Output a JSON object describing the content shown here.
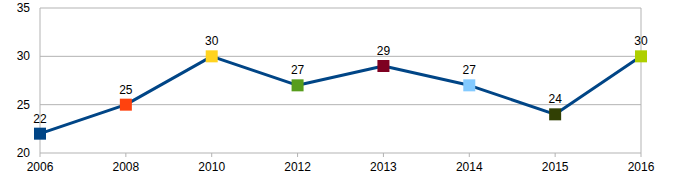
{
  "chart_data": {
    "type": "line",
    "categories": [
      "2006",
      "2008",
      "2010",
      "2012",
      "2013",
      "2014",
      "2015",
      "2016"
    ],
    "values": [
      22,
      25,
      30,
      27,
      29,
      27,
      24,
      30
    ],
    "color": "#004586",
    "colors": [
      "#004586",
      "#ff420e",
      "#ffd320",
      "#579d1c",
      "#7e0021",
      "#83caff",
      "#314004",
      "#aecf00"
    ],
    "marker": "square",
    "ylim": [
      20,
      35
    ],
    "yticks": [
      20,
      25,
      30,
      35
    ],
    "grid": true,
    "data_labels": true
  }
}
